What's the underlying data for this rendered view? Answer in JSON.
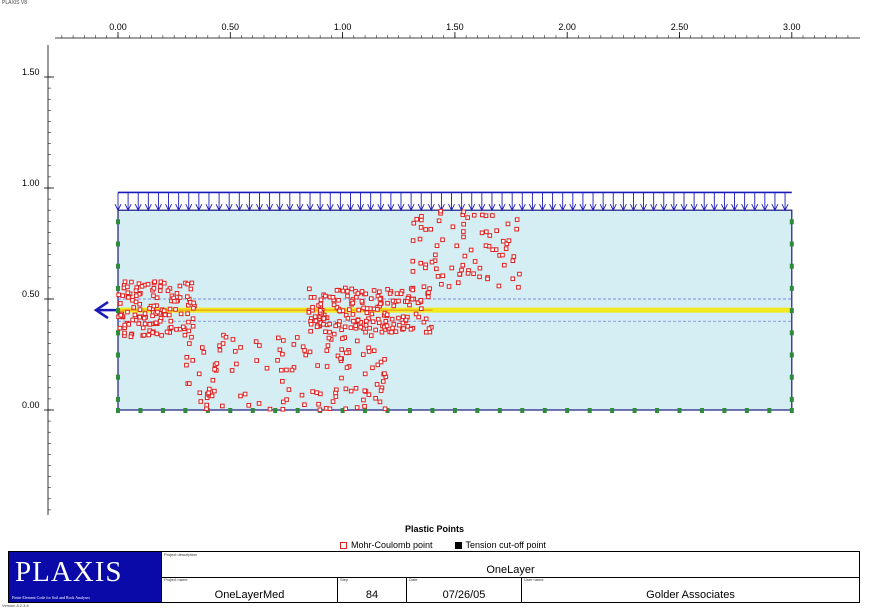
{
  "app_label": "PLAXIS V8",
  "chart_data": {
    "type": "scatter",
    "x_ticks": [
      "0.00",
      "0.50",
      "1.00",
      "1.50",
      "2.00",
      "2.50",
      "3.00"
    ],
    "y_ticks": [
      "1.50",
      "1.00",
      "0.50",
      "0.00"
    ],
    "xlim": [
      -0.5,
      3.3
    ],
    "ylim": [
      -0.5,
      1.6
    ],
    "domain": {
      "x": [
        0,
        3.0
      ],
      "y": [
        0,
        0.9
      ]
    },
    "load_top_y": 0.98,
    "geogrid_y": 0.45,
    "plastic_clusters": [
      {
        "x": [
          0.0,
          0.35
        ],
        "y": [
          0.33,
          0.58
        ],
        "n": 140
      },
      {
        "x": [
          0.85,
          1.4
        ],
        "y": [
          0.35,
          0.55
        ],
        "n": 190
      },
      {
        "x": [
          1.3,
          1.8
        ],
        "y": [
          0.55,
          0.9
        ],
        "n": 80
      },
      {
        "x": [
          0.3,
          1.2
        ],
        "y": [
          0.0,
          0.35
        ],
        "n": 130
      }
    ],
    "legend_title": "Plastic Points",
    "legend": [
      {
        "label": "Mohr-Coulomb point",
        "color": "#e02020"
      },
      {
        "label": "Tension cut-off point",
        "color": "#000000"
      }
    ],
    "colors": {
      "soil": "#d4eef4",
      "load": "#1a1ab8",
      "geogrid": "#f2ea1e",
      "points": "#e02020",
      "supports": "#2e8b3a"
    }
  },
  "title_block": {
    "logo": "PLAXIS",
    "logo_subtitle": "Finite Element Code for Soil and Rock Analyses",
    "description_caption": "Project description",
    "description": "OneLayer",
    "project_caption": "Project name",
    "project_name": "OneLayerMed",
    "step_caption": "Step",
    "step": "84",
    "date_caption": "Date",
    "date": "07/26/05",
    "user_caption": "User name",
    "user": "Golder Associates"
  },
  "version": "Version 8.2.3.6"
}
